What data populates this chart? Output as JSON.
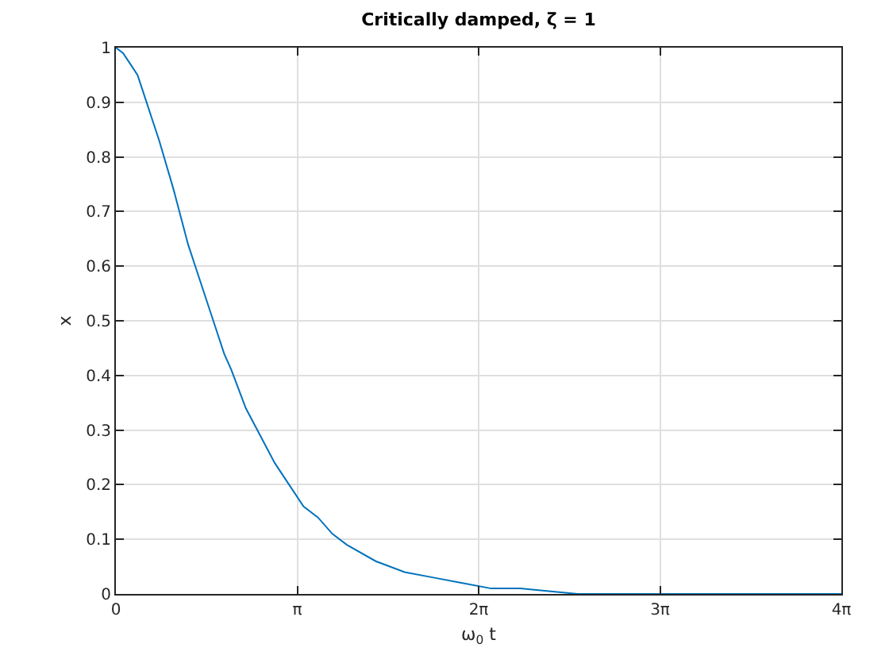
{
  "chart_data": {
    "type": "line",
    "title": "Critically damped, ζ = 1",
    "xlabel": "ω$_{0}$ t",
    "ylabel": "x",
    "x": [
      0,
      0.125,
      0.25,
      0.375,
      0.5,
      0.625,
      0.75,
      1,
      1.125,
      1.25,
      1.375,
      1.5,
      1.625,
      1.75,
      1.875,
      2,
      2.25,
      2.5,
      2.75,
      3,
      3.25,
      3.5,
      3.75,
      4,
      4.5,
      5,
      5.5,
      6,
      6.5,
      7,
      8,
      9,
      10,
      11,
      12.566
    ],
    "series": [
      {
        "color": "#0072bd",
        "values": [
          1,
          0.99,
          0.97,
          0.95,
          0.91,
          0.87,
          0.83,
          0.74,
          0.69,
          0.64,
          0.6,
          0.56,
          0.52,
          0.48,
          0.44,
          0.41,
          0.34,
          0.29,
          0.24,
          0.2,
          0.16,
          0.14,
          0.11,
          0.09,
          0.06,
          0.04,
          0.03,
          0.02,
          0.01,
          0.01,
          0,
          0,
          0,
          0,
          0
        ]
      }
    ],
    "xlim": [
      0,
      12.566
    ],
    "xticks": [
      0,
      {
        "value": 3.1416,
        "label": "π"
      },
      {
        "value": 6.2832,
        "label": "2π"
      },
      {
        "value": 9.4248,
        "label": "3π"
      },
      {
        "value": 12.566,
        "label": "4π"
      }
    ],
    "ylim": [
      0,
      1
    ],
    "yticks": [
      0,
      0.1,
      0.2,
      0.3,
      0.4,
      0.5,
      0.6,
      0.7,
      0.8,
      0.9,
      1
    ],
    "grid": true,
    "marker": "none",
    "line_style": "solid"
  }
}
